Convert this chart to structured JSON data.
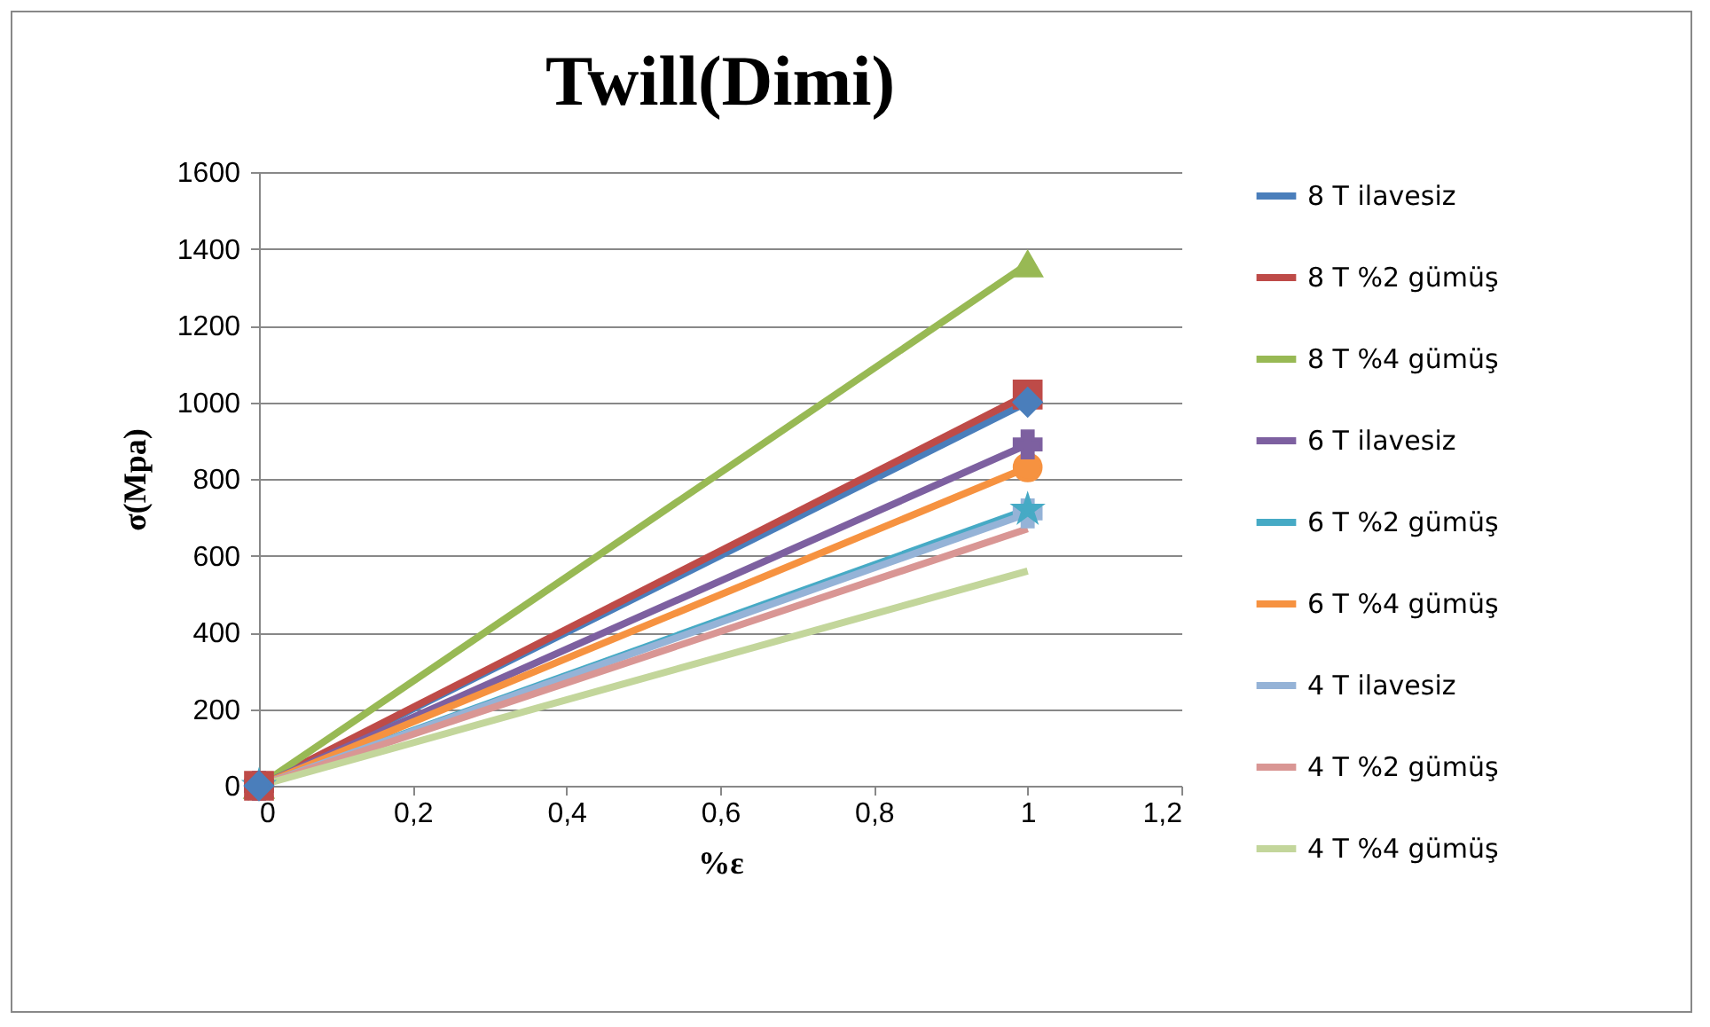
{
  "chart_data": {
    "type": "line",
    "title": "Twill(Dimi)",
    "xlabel": "%ε",
    "ylabel": "σ(Mpa)",
    "x": [
      0,
      1
    ],
    "xlim": [
      0,
      1.2
    ],
    "xticks": [
      {
        "value": 0,
        "label": "0"
      },
      {
        "value": 0.2,
        "label": "0,2"
      },
      {
        "value": 0.4,
        "label": "0,4"
      },
      {
        "value": 0.6,
        "label": "0,6"
      },
      {
        "value": 0.8,
        "label": "0,8"
      },
      {
        "value": 1,
        "label": "1"
      },
      {
        "value": 1.2,
        "label": "1,2"
      }
    ],
    "ylim": [
      0,
      1600
    ],
    "yticks": [
      0,
      200,
      400,
      600,
      800,
      1000,
      1200,
      1400,
      1600
    ],
    "grid": "y",
    "legend": "right",
    "series": [
      {
        "name": "8 T ilavesiz",
        "color": "#4a7ebb",
        "marker": "diamond",
        "values": [
          0,
          1000
        ]
      },
      {
        "name": "8 T %2 gümüş",
        "color": "#be4b48",
        "marker": "square",
        "values": [
          0,
          1020
        ]
      },
      {
        "name": "8 T %4 gümüş",
        "color": "#98b954",
        "marker": "triangle",
        "values": [
          0,
          1360
        ]
      },
      {
        "name": "6 T ilavesiz",
        "color": "#7d60a0",
        "marker": "cross",
        "values": [
          0,
          890
        ]
      },
      {
        "name": "6 T %2 gümüş",
        "color": "#46aac5",
        "marker": "star",
        "values": [
          0,
          720
        ]
      },
      {
        "name": "6 T %4 gümüş",
        "color": "#f69240",
        "marker": "circle",
        "values": [
          0,
          830
        ]
      },
      {
        "name": "4 T ilavesiz",
        "color": "#95b3d7",
        "marker": "cross",
        "values": [
          0,
          710
        ]
      },
      {
        "name": "4 T %2 gümüş",
        "color": "#d99694",
        "marker": "none",
        "values": [
          0,
          670
        ]
      },
      {
        "name": "4 T %4 gümüş",
        "color": "#c3d69b",
        "marker": "none",
        "values": [
          0,
          560
        ]
      }
    ]
  }
}
